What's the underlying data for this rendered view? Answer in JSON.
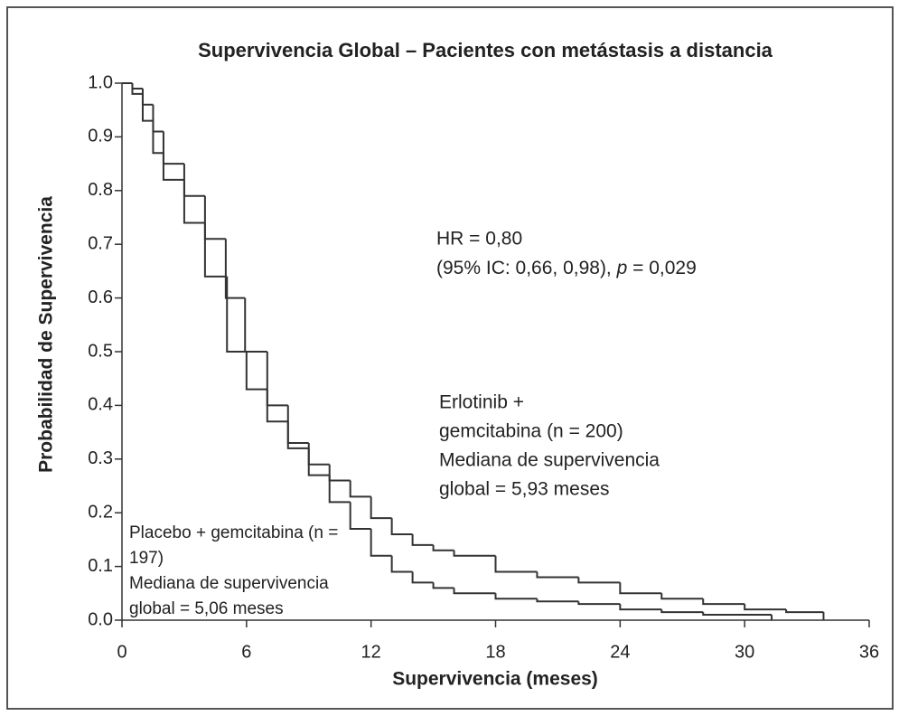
{
  "chart_data": {
    "type": "step",
    "title": "Supervivencia Global – Pacientes con metástasis a distancia",
    "x_label": "Supervivencia (meses)",
    "y_label": "Probabilidad de Supervivencia",
    "xlim": [
      0,
      36
    ],
    "ylim": [
      0,
      1
    ],
    "xticks": [
      0,
      6,
      12,
      18,
      24,
      30,
      36
    ],
    "yticks": [
      {
        "value": 0,
        "label": "0.0"
      },
      0.1,
      0.2,
      0.3,
      0.4,
      0.5,
      0.6,
      0.7,
      0.8,
      0.9,
      {
        "value": 1,
        "label": "1.0"
      }
    ],
    "hr": "HR = 0,80",
    "ci": {
      "prefix": "(95% IC: 0,66, 0,98), ",
      "italic": "p",
      "suffix": " = 0,029"
    },
    "series": [
      {
        "color": "#333333",
        "label_lines": [
          "Erlotinib +",
          "gemcitabina (n = 200)",
          "Mediana de supervivencia",
          "global = 5,93 meses"
        ],
        "x": [
          0,
          0.5,
          1,
          1.5,
          2,
          3,
          4,
          5,
          5.93,
          7,
          8,
          9,
          10,
          11,
          12,
          13,
          14,
          15,
          16,
          18,
          20,
          22,
          24,
          26,
          28,
          30,
          32,
          33.8
        ],
        "values": [
          1,
          0.99,
          0.96,
          0.91,
          0.85,
          0.79,
          0.71,
          0.6,
          0.5,
          0.4,
          0.33,
          0.29,
          0.26,
          0.23,
          0.19,
          0.16,
          0.14,
          0.13,
          0.12,
          0.09,
          0.08,
          0.07,
          0.05,
          0.04,
          0.03,
          0.02,
          0.015,
          0
        ]
      },
      {
        "color": "#333333",
        "label_lines": [
          "Placebo + gemcitabina (n =",
          "197)",
          "Mediana de supervivencia",
          "global = 5,06 meses"
        ],
        "x": [
          0,
          0.5,
          1,
          1.5,
          2,
          3,
          4,
          5.06,
          6,
          7,
          8,
          9,
          10,
          11,
          12,
          13,
          14,
          15,
          16,
          18,
          20,
          22,
          24,
          26,
          28,
          31.3
        ],
        "values": [
          1,
          0.98,
          0.93,
          0.87,
          0.82,
          0.74,
          0.64,
          0.5,
          0.43,
          0.37,
          0.32,
          0.27,
          0.22,
          0.17,
          0.12,
          0.09,
          0.07,
          0.06,
          0.05,
          0.04,
          0.035,
          0.03,
          0.02,
          0.015,
          0.01,
          0
        ]
      }
    ]
  }
}
